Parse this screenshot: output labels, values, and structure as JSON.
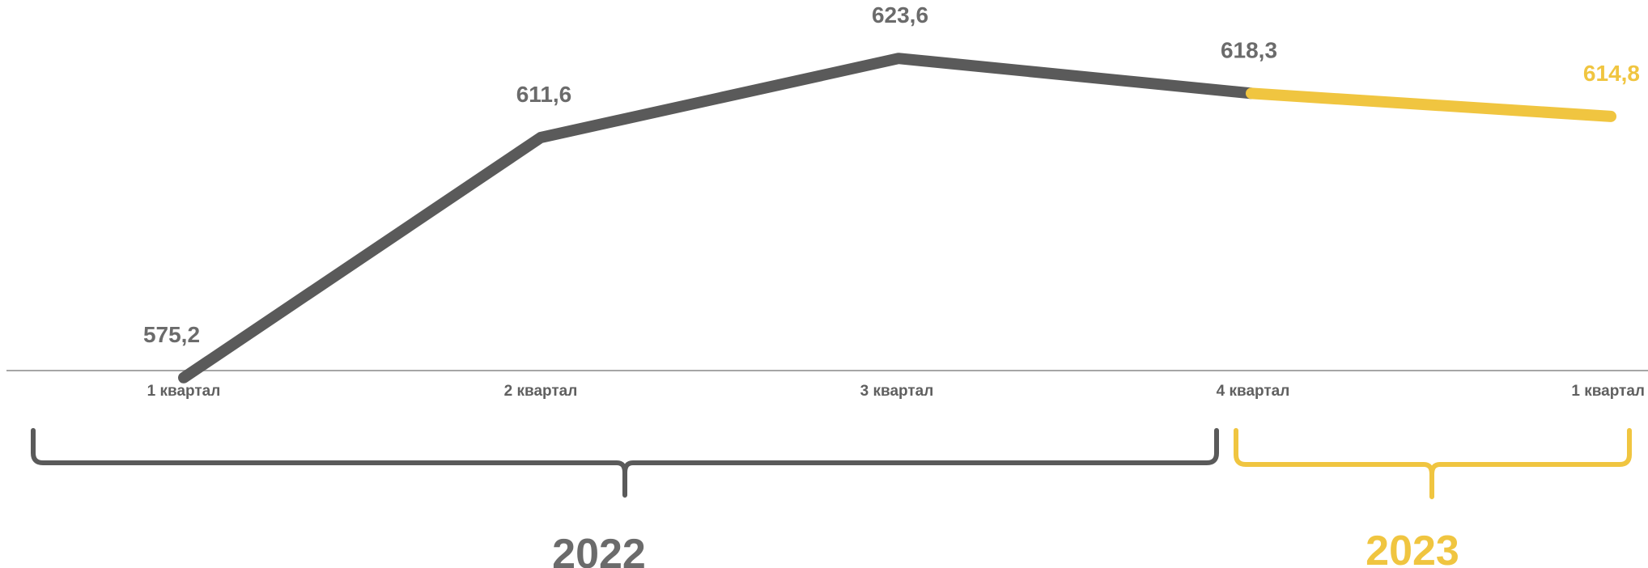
{
  "chart_data": {
    "type": "line",
    "title": "",
    "xlabel": "",
    "ylabel": "",
    "categories": [
      "1 квартал",
      "2 квартал",
      "3 квартал",
      "4 квартал",
      "1 квартал"
    ],
    "values": [
      575.2,
      611.6,
      623.6,
      618.3,
      614.8
    ],
    "value_labels": [
      "575,2",
      "611,6",
      "623,6",
      "618,3",
      "614,8"
    ],
    "ylim": [
      565,
      630
    ],
    "grid": false,
    "legend": "none",
    "groups": [
      {
        "label": "2022",
        "color": "#5a5a5a",
        "from_index": 0,
        "to_index": 3
      },
      {
        "label": "2023",
        "color": "#f0c540",
        "from_index": 3,
        "to_index": 4
      }
    ],
    "colors": {
      "series_2022": "#5a5a5a",
      "series_2023": "#f0c540",
      "label_2022": "#6b6b6b",
      "label_2023": "#f0c540",
      "axis": "#a6a6a6"
    }
  }
}
